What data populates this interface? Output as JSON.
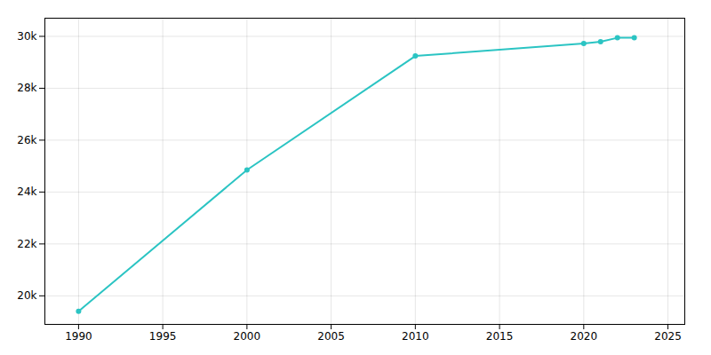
{
  "chart_data": {
    "type": "line",
    "x": [
      1990,
      2000,
      2010,
      2020,
      2021,
      2022,
      2023
    ],
    "values": [
      19405,
      24851,
      29243,
      29725,
      29791,
      29944,
      29951
    ],
    "color": "#2bc4c3",
    "marker": "circle",
    "xlim": [
      1988,
      2026
    ],
    "xticks": [
      1990,
      1995,
      2000,
      2005,
      2010,
      2015,
      2020,
      2025
    ],
    "ylim": [
      18900,
      30700
    ],
    "yticks": [
      {
        "value": 20000,
        "label": "20k"
      },
      {
        "value": 22000,
        "label": "22k"
      },
      {
        "value": 24000,
        "label": "24k"
      },
      {
        "value": 26000,
        "label": "26k"
      },
      {
        "value": 28000,
        "label": "28k"
      },
      {
        "value": 30000,
        "label": "30k"
      }
    ],
    "grid": true
  }
}
